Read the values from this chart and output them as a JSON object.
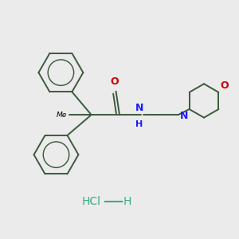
{
  "bg_color": "#ebebeb",
  "bond_color": "#3d5a3d",
  "bond_width": 1.4,
  "N_color": "#1a1aff",
  "O_color": "#cc0000",
  "text_color": "#000000",
  "HCl_color": "#3aaa8a",
  "figsize": [
    3.0,
    3.0
  ],
  "dpi": 100,
  "xlim": [
    0,
    10
  ],
  "ylim": [
    0,
    10
  ]
}
